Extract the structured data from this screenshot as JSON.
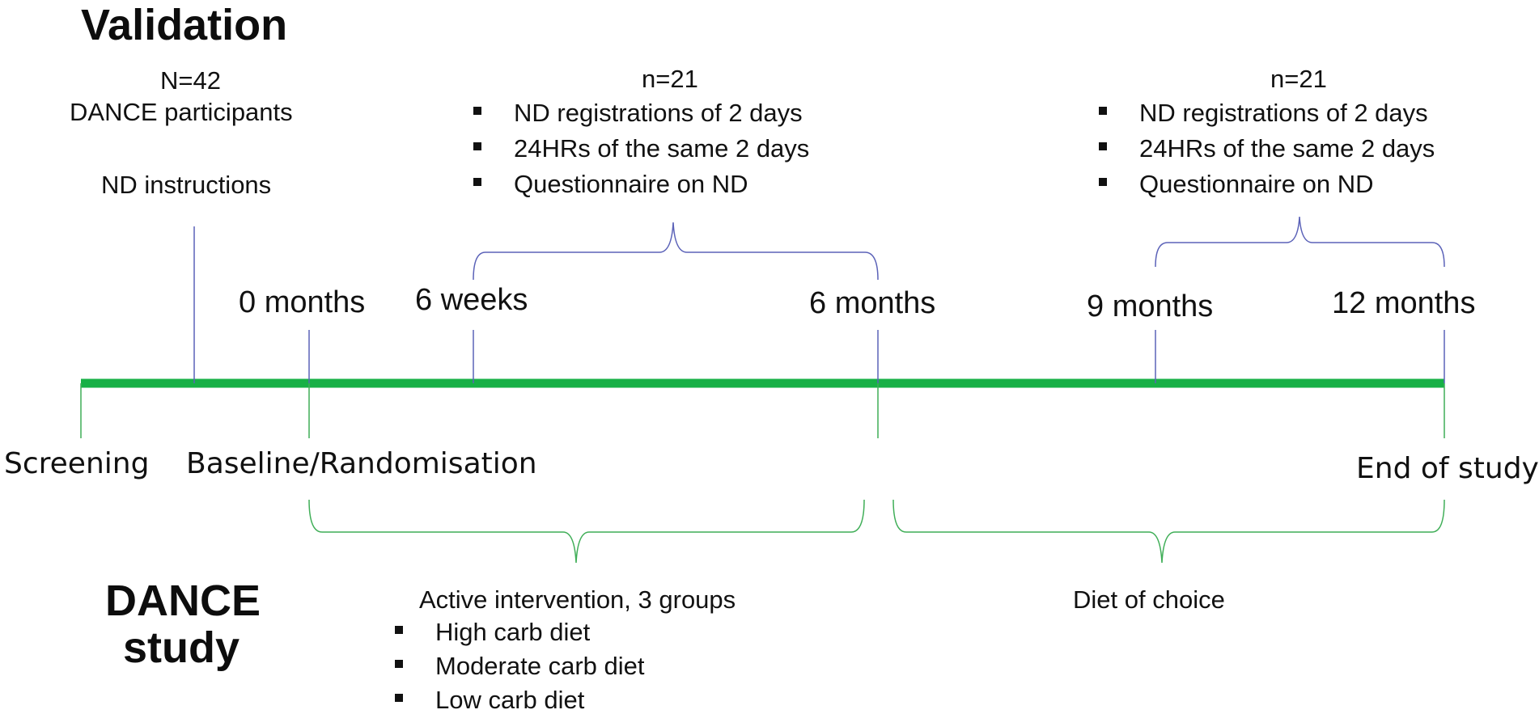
{
  "validation": {
    "title": "Validation",
    "n_total": "N=42",
    "participants": "DANCE participants",
    "instructions": "ND instructions",
    "group1": {
      "n": "n=21",
      "items": [
        "ND registrations of 2 days",
        "24HRs of the same 2 days",
        "Questionnaire on ND"
      ]
    },
    "group2": {
      "n": "n=21",
      "items": [
        "ND registrations of 2 days",
        "24HRs of the same 2 days",
        "Questionnaire on ND"
      ]
    }
  },
  "timeline": {
    "ticks": [
      "0 months",
      "6 weeks",
      "6 months",
      "9 months",
      "12 months"
    ],
    "phases": {
      "screening": "Screening",
      "baseline": "Baseline/Randomisation",
      "end": "End of study"
    },
    "colors": {
      "timeline": "#17b046",
      "validation_lines": "#5b62b8",
      "study_lines": "#3fae57"
    }
  },
  "dance": {
    "title_line1": "DANCE",
    "title_line2": "study",
    "active": {
      "label": "Active intervention, 3 groups",
      "items": [
        "High carb diet",
        "Moderate carb diet",
        "Low carb diet"
      ]
    },
    "choice": "Diet of choice"
  }
}
